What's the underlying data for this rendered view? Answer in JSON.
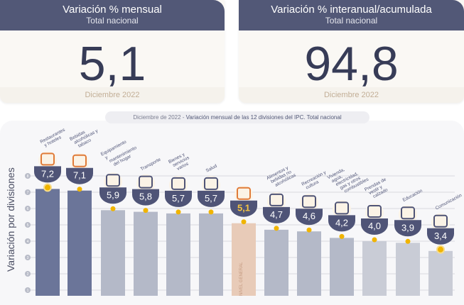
{
  "cards": [
    {
      "title": "Variación % mensual",
      "subtitle": "Total nacional",
      "value": "5,1",
      "period": "Diciembre 2022"
    },
    {
      "title": "Variación % interanual/acumulada",
      "subtitle": "Total nacional",
      "value": "94,8",
      "period": "Diciembre 2022"
    }
  ],
  "chart_data": {
    "type": "bar",
    "title_date": "Diciembre de 2022",
    "title": "Variación mensual de las 12 divisiones del IPC. Total nacional",
    "ylabel": "Variación por divisiones",
    "yticks": [
      "1",
      "2",
      "3",
      "4",
      "5",
      "6",
      "7",
      "8"
    ],
    "ylim": [
      0,
      8.5
    ],
    "categories": [
      "Restaurantes y hoteles",
      "Bebidas alcohólicas y tabaco",
      "Equipamiento y mantenimiento del hogar",
      "Transporte",
      "Bienes y servicios varios",
      "Salud",
      "Nivel general",
      "Alimentos y bebidas no alcohólicas",
      "Recreación y cultura",
      "Vivienda, agua, electricidad, gas y otros combustibles",
      "Prendas de vestir y calzado",
      "Educación",
      "Comunicación"
    ],
    "values": [
      7.2,
      7.1,
      5.9,
      5.8,
      5.7,
      5.7,
      5.1,
      4.7,
      4.6,
      4.2,
      4.0,
      3.9,
      3.4
    ],
    "value_labels": [
      "7,2",
      "7,1",
      "5,9",
      "5,8",
      "5,7",
      "5,7",
      "5,1",
      "4,7",
      "4,6",
      "4,2",
      "4,0",
      "3,9",
      "3,4"
    ],
    "bar_text": "NIVEL GENERAL",
    "colors": {
      "top": "#6b7599",
      "mid": "#b4b9c8",
      "low": "#c9ccd6",
      "general": "#e8cbb8",
      "pill": "#4f5477",
      "dot": "#f0b400",
      "general_label": "#f5c542"
    }
  }
}
